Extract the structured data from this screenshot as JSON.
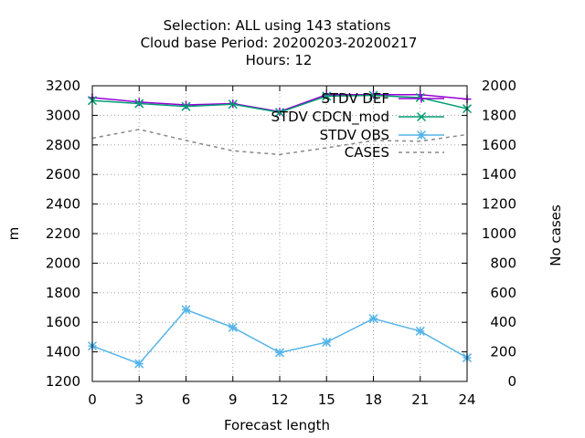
{
  "chart_data": {
    "type": "line",
    "title_lines": [
      "Selection: ALL using   143 stations",
      "Cloud base   Period: 20200203-20200217",
      "Hours:  12"
    ],
    "xlabel": "Forecast length",
    "ylabel": "m",
    "y2label": "No cases",
    "x": [
      0,
      3,
      6,
      9,
      12,
      15,
      18,
      21,
      24
    ],
    "xlim": [
      0,
      24
    ],
    "ylim": [
      1200,
      3200
    ],
    "y2lim": [
      0,
      2000
    ],
    "x_ticks": [
      0,
      3,
      6,
      9,
      12,
      15,
      18,
      21,
      24
    ],
    "y_ticks": [
      1200,
      1400,
      1600,
      1800,
      2000,
      2200,
      2400,
      2600,
      2800,
      3000,
      3200
    ],
    "y2_ticks": [
      0,
      200,
      400,
      600,
      800,
      1000,
      1200,
      1400,
      1600,
      1800,
      2000
    ],
    "grid": true,
    "legend_position": "top-right",
    "series": [
      {
        "name": "STDV DEF",
        "axis": "y",
        "color": "#9400d3",
        "style": "solid",
        "marker": "plus",
        "values": [
          3120,
          3090,
          3070,
          3080,
          3025,
          3140,
          3140,
          3140,
          3110
        ]
      },
      {
        "name": "STDV CDCN_mod",
        "axis": "y",
        "color": "#009e73",
        "style": "solid",
        "marker": "cross",
        "values": [
          3100,
          3080,
          3060,
          3075,
          3020,
          3130,
          3135,
          3120,
          3045
        ]
      },
      {
        "name": "STDV OBS",
        "axis": "y",
        "color": "#56b4e9",
        "style": "solid",
        "marker": "star",
        "values": [
          1440,
          1320,
          1685,
          1565,
          1395,
          1465,
          1625,
          1540,
          1360
        ]
      },
      {
        "name": "CASES",
        "axis": "y2",
        "color": "#888888",
        "style": "dashed",
        "marker": "none",
        "values": [
          1645,
          1705,
          1630,
          1560,
          1535,
          1580,
          1630,
          1625,
          1670
        ]
      }
    ]
  }
}
